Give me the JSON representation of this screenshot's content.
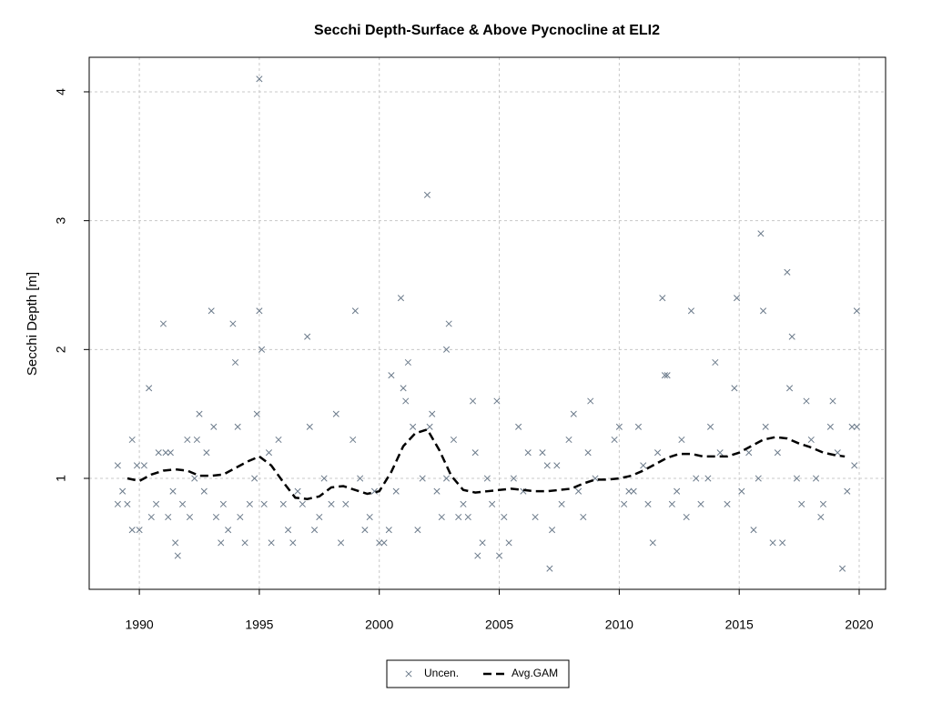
{
  "chart_data": {
    "type": "scatter",
    "title": "Secchi Depth-Surface & Above Pycnocline at ELI2",
    "y_label": "Secchi Depth [m]",
    "xlim": [
      1987.91,
      2021.1
    ],
    "xticks": [
      1990,
      1995,
      2000,
      2005,
      2010,
      2015,
      2020
    ],
    "ylim": [
      0.139,
      4.268
    ],
    "yticks": [
      1,
      2,
      3,
      4
    ],
    "grid": true,
    "legend": "bottom",
    "series": [
      {
        "name": "Uncen.",
        "type": "scatter",
        "color": "#6c7b8b",
        "x": [
          1989.1,
          1989.1,
          1989.3,
          1989.5,
          1989.7,
          1989.7,
          1989.9,
          1990.0,
          1990.2,
          1990.4,
          1990.5,
          1990.7,
          1990.8,
          1991.0,
          1991.1,
          1991.2,
          1991.3,
          1991.4,
          1991.5,
          1991.6,
          1991.8,
          1992.0,
          1992.1,
          1992.3,
          1992.4,
          1992.5,
          1992.7,
          1992.8,
          1993.0,
          1993.1,
          1993.2,
          1993.4,
          1993.5,
          1993.7,
          1993.9,
          1994.0,
          1994.1,
          1994.2,
          1994.4,
          1994.6,
          1994.8,
          1994.9,
          1995.0,
          1995.0,
          1995.1,
          1995.2,
          1995.4,
          1995.5,
          1995.8,
          1996.0,
          1996.2,
          1996.4,
          1996.6,
          1996.8,
          1997.0,
          1997.1,
          1997.3,
          1997.5,
          1997.7,
          1998.0,
          1998.2,
          1998.4,
          1998.6,
          1998.9,
          1999.0,
          1999.2,
          1999.4,
          1999.6,
          1999.8,
          2000.0,
          2000.2,
          2000.4,
          2000.5,
          2000.7,
          2000.9,
          2001.0,
          2001.1,
          2001.2,
          2001.4,
          2001.6,
          2001.8,
          2002.0,
          2002.1,
          2002.2,
          2002.4,
          2002.6,
          2002.8,
          2002.9,
          2002.8,
          2003.1,
          2003.3,
          2003.5,
          2003.7,
          2003.9,
          2004.0,
          2004.1,
          2004.3,
          2004.5,
          2004.7,
          2004.9,
          2005.0,
          2005.2,
          2005.4,
          2005.6,
          2005.8,
          2006.0,
          2006.2,
          2006.5,
          2006.8,
          2007.0,
          2007.1,
          2007.2,
          2007.4,
          2007.6,
          2007.9,
          2008.1,
          2008.3,
          2008.5,
          2008.7,
          2008.8,
          2009.0,
          2009.8,
          2010.0,
          2010.2,
          2010.4,
          2010.6,
          2010.8,
          2011.0,
          2011.2,
          2011.4,
          2011.6,
          2011.8,
          2011.9,
          2012.0,
          2012.2,
          2012.4,
          2012.6,
          2012.8,
          2013.0,
          2013.2,
          2013.4,
          2013.7,
          2013.8,
          2014.0,
          2014.2,
          2014.5,
          2014.8,
          2014.9,
          2015.1,
          2015.4,
          2015.6,
          2015.8,
          2015.9,
          2016.0,
          2016.1,
          2016.4,
          2016.6,
          2016.8,
          2017.0,
          2017.1,
          2017.2,
          2017.4,
          2017.6,
          2017.8,
          2018.0,
          2018.2,
          2018.4,
          2018.5,
          2018.8,
          2018.9,
          2019.1,
          2019.3,
          2019.5,
          2019.7,
          2019.8,
          2019.9,
          2019.9
        ],
        "values": [
          1.1,
          0.8,
          0.9,
          0.8,
          1.3,
          0.6,
          1.1,
          0.6,
          1.1,
          1.7,
          0.7,
          0.8,
          1.2,
          2.2,
          1.2,
          0.7,
          1.2,
          0.9,
          0.5,
          0.4,
          0.8,
          1.3,
          0.7,
          1.0,
          1.3,
          1.5,
          0.9,
          1.2,
          2.3,
          1.4,
          0.7,
          0.5,
          0.8,
          0.6,
          2.2,
          1.9,
          1.4,
          0.7,
          0.5,
          0.8,
          1.0,
          1.5,
          2.3,
          4.1,
          2.0,
          0.8,
          1.2,
          0.5,
          1.3,
          0.8,
          0.6,
          0.5,
          0.9,
          0.8,
          2.1,
          1.4,
          0.6,
          0.7,
          1.0,
          0.8,
          1.5,
          0.5,
          0.8,
          1.3,
          2.3,
          1.0,
          0.6,
          0.7,
          0.9,
          0.5,
          0.5,
          0.6,
          1.8,
          0.9,
          2.4,
          1.7,
          1.6,
          1.9,
          1.4,
          0.6,
          1.0,
          3.2,
          1.4,
          1.5,
          0.9,
          0.7,
          1.0,
          2.2,
          2.0,
          1.3,
          0.7,
          0.8,
          0.7,
          1.6,
          1.2,
          0.4,
          0.5,
          1.0,
          0.8,
          1.6,
          0.4,
          0.7,
          0.5,
          1.0,
          1.4,
          0.9,
          1.2,
          0.7,
          1.2,
          1.1,
          0.3,
          0.6,
          1.1,
          0.8,
          1.3,
          1.5,
          0.9,
          0.7,
          1.2,
          1.6,
          1.0,
          1.3,
          1.4,
          0.8,
          0.9,
          0.9,
          1.4,
          1.1,
          0.8,
          0.5,
          1.2,
          2.4,
          1.8,
          1.8,
          0.8,
          0.9,
          1.3,
          0.7,
          2.3,
          1.0,
          0.8,
          1.0,
          1.4,
          1.9,
          1.2,
          0.8,
          1.7,
          2.4,
          0.9,
          1.2,
          0.6,
          1.0,
          2.9,
          2.3,
          1.4,
          0.5,
          1.2,
          0.5,
          2.6,
          1.7,
          2.1,
          1.0,
          0.8,
          1.6,
          1.3,
          1.0,
          0.7,
          0.8,
          1.4,
          1.6,
          1.2,
          0.3,
          0.9,
          1.4,
          1.1,
          2.3,
          1.4
        ]
      },
      {
        "name": "Avg.GAM",
        "type": "line",
        "color": "#000000",
        "x": [
          1989.5,
          1990,
          1990.5,
          1991,
          1991.5,
          1992,
          1992.5,
          1993,
          1993.5,
          1994,
          1994.5,
          1995,
          1995.5,
          1996,
          1996.5,
          1997,
          1997.5,
          1998,
          1998.5,
          1999,
          1999.5,
          2000,
          2000.5,
          2001,
          2001.5,
          2002,
          2002.5,
          2003,
          2003.5,
          2004,
          2004.5,
          2005,
          2005.5,
          2006,
          2006.5,
          2007,
          2007.5,
          2008,
          2008.5,
          2009,
          2009.5,
          2010,
          2010.5,
          2011,
          2011.5,
          2012,
          2012.5,
          2013,
          2013.5,
          2014,
          2014.5,
          2015,
          2015.5,
          2016,
          2016.5,
          2017,
          2017.5,
          2018,
          2018.5,
          2019,
          2019.4
        ],
        "values": [
          1.0,
          0.98,
          1.03,
          1.06,
          1.07,
          1.06,
          1.02,
          1.02,
          1.03,
          1.08,
          1.13,
          1.17,
          1.1,
          0.97,
          0.85,
          0.84,
          0.86,
          0.93,
          0.94,
          0.91,
          0.88,
          0.9,
          1.05,
          1.25,
          1.35,
          1.38,
          1.22,
          1.02,
          0.91,
          0.89,
          0.9,
          0.91,
          0.92,
          0.91,
          0.9,
          0.9,
          0.91,
          0.92,
          0.96,
          0.99,
          0.99,
          1.0,
          1.02,
          1.06,
          1.11,
          1.16,
          1.19,
          1.19,
          1.17,
          1.17,
          1.17,
          1.2,
          1.25,
          1.3,
          1.32,
          1.31,
          1.27,
          1.24,
          1.2,
          1.18,
          1.17
        ]
      }
    ]
  }
}
